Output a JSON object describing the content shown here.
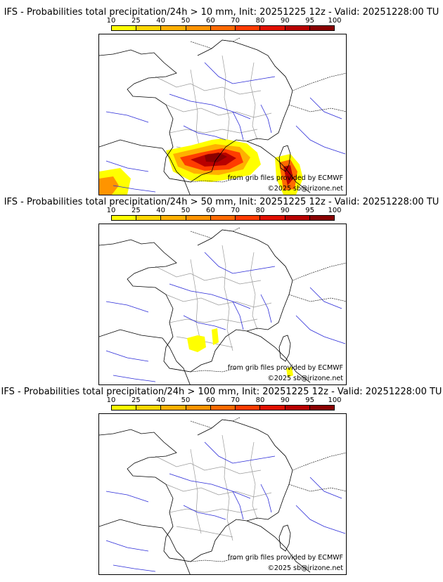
{
  "colorbar": {
    "ticks": [
      "10",
      "25",
      "40",
      "50",
      "60",
      "70",
      "80",
      "90",
      "95",
      "100"
    ],
    "colors": [
      "#ffff00",
      "#ffd700",
      "#ffb000",
      "#ff9400",
      "#ff6a00",
      "#ff3c00",
      "#e01000",
      "#b80000",
      "#8a0000"
    ]
  },
  "panels": [
    {
      "title": "IFS - Probabilities total precipitation/24h > 10 mm, Init: 20251225 12z - Valid: 20251228:00 TU",
      "threshold_level": "high"
    },
    {
      "title": "IFS - Probabilities total precipitation/24h > 50 mm, Init: 20251225 12z - Valid: 20251228:00 TU",
      "threshold_level": "medium"
    },
    {
      "title": "IFS - Probabilities total precipitation/24h > 100 mm, Init: 20251225 12z - Valid: 20251228:00 TU",
      "threshold_level": "none"
    }
  ],
  "credits": {
    "source": "from grib files provided by ECMWF",
    "copyright": "©2025 sb@irizone.net"
  },
  "map_colors": {
    "coast": "#000000",
    "rivers": "#2b2bd8",
    "regions": "#9a9a9a"
  }
}
